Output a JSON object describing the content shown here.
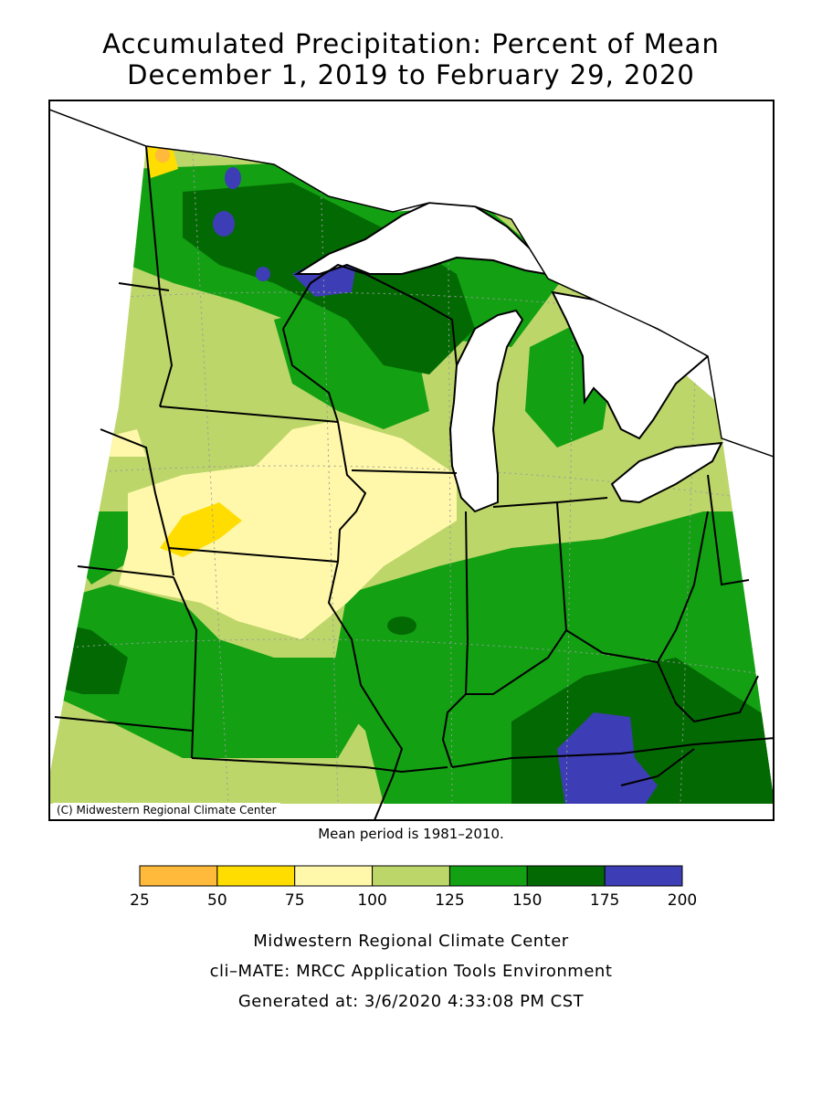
{
  "title": {
    "line1": "Accumulated Precipitation: Percent of Mean",
    "line2": "December 1, 2019 to February 29, 2020"
  },
  "map": {
    "copyright": "(C) Midwestern Regional Climate Center",
    "mean_period": "Mean period is 1981–2010."
  },
  "legend": {
    "ticks": [
      "25",
      "50",
      "75",
      "100",
      "125",
      "150",
      "175",
      "200"
    ],
    "bins": [
      {
        "from": 25,
        "to": 50,
        "color": "#FFB93B"
      },
      {
        "from": 50,
        "to": 75,
        "color": "#FFDD00"
      },
      {
        "from": 75,
        "to": 100,
        "color": "#FFF8AA"
      },
      {
        "from": 100,
        "to": 125,
        "color": "#BDD66A"
      },
      {
        "from": 125,
        "to": 150,
        "color": "#13A013"
      },
      {
        "from": 150,
        "to": 175,
        "color": "#036A03"
      },
      {
        "from": 175,
        "to": 200,
        "color": "#3D3DB5"
      }
    ]
  },
  "footer": {
    "line1": "Midwestern Regional Climate Center",
    "line2": "cli–MATE: MRCC Application Tools Environment",
    "line3": "Generated at: 3/6/2020 4:33:08 PM CST"
  }
}
